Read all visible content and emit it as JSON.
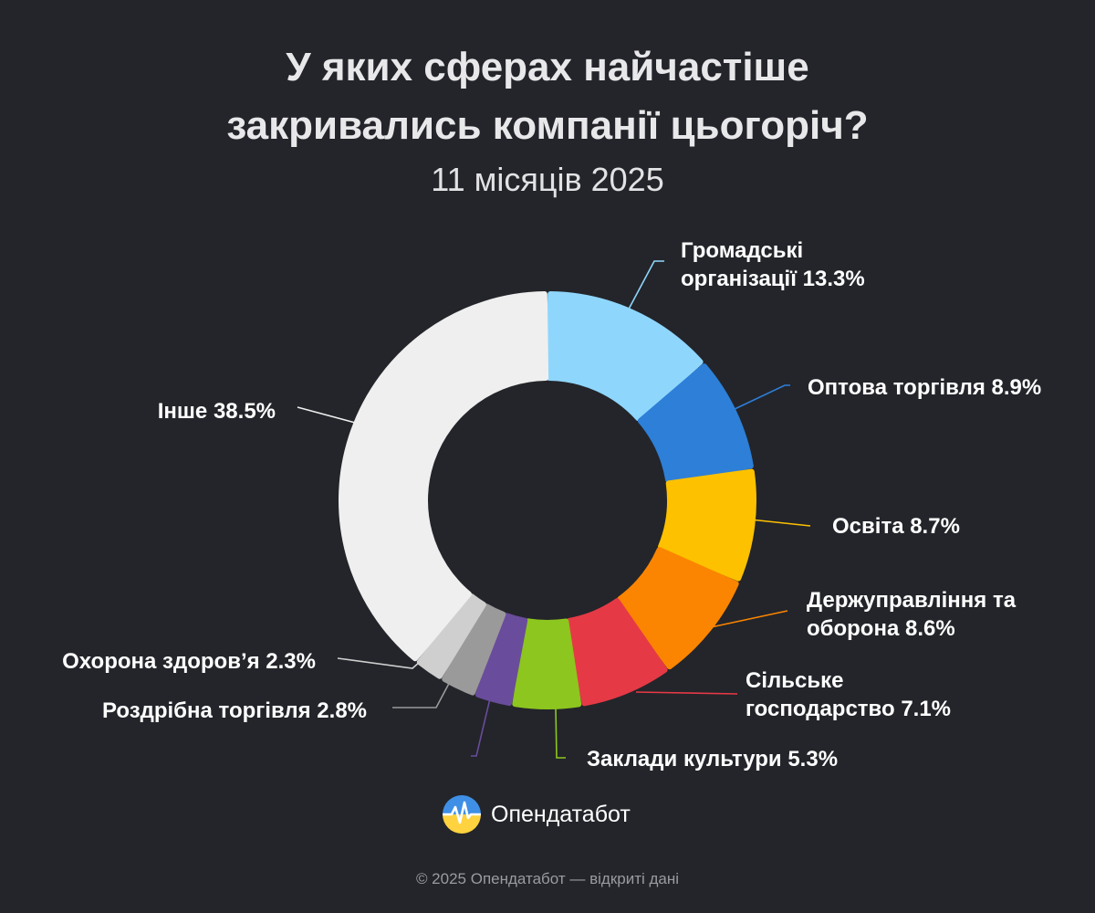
{
  "header": {
    "title_line1": "У яких сферах найчастіше",
    "title_line2": "закривались компанії цьогоріч?",
    "subtitle": "11 місяців 2025"
  },
  "brand": {
    "name": "Опендатабот",
    "logo_icon": "opendatabot-logo-icon"
  },
  "footer": {
    "text": "© 2025 Опендатабот — відкриті дані"
  },
  "chart_data": {
    "type": "pie",
    "title": "У яких сферах найчастіше закривались компанії цьогоріч?",
    "subtitle": "11 місяців 2025",
    "unit": "%",
    "slices": [
      {
        "label_lines": [
          "Громадські",
          "організації 13.3%"
        ],
        "value": 13.3,
        "color": "#8fd6fd"
      },
      {
        "label_lines": [
          "Оптова торгівля 8.9%"
        ],
        "value": 8.9,
        "color": "#2d7fd8"
      },
      {
        "label_lines": [
          "Освіта 8.7%"
        ],
        "value": 8.7,
        "color": "#fdc100"
      },
      {
        "label_lines": [
          "Держуправління та",
          "оборона 8.6%"
        ],
        "value": 8.6,
        "color": "#fb8500"
      },
      {
        "label_lines": [
          "Сільське",
          "господарство 7.1%"
        ],
        "value": 7.1,
        "color": "#e63946"
      },
      {
        "label_lines": [
          "Заклади культури 5.3%"
        ],
        "value": 5.3,
        "color": "#8dc61e"
      },
      {
        "label_lines": [],
        "value": 2.9,
        "color": "#6a4c9c"
      },
      {
        "label_lines": [
          "Роздрібна торгівля 2.8%"
        ],
        "value": 2.8,
        "color": "#9a9a9a"
      },
      {
        "label_lines": [
          "Охорона здоров’я 2.3%"
        ],
        "value": 2.3,
        "color": "#cfcfcf"
      },
      {
        "label_lines": [
          "Інше 38.5%"
        ],
        "value": 38.5,
        "color": "#efefef"
      }
    ]
  }
}
